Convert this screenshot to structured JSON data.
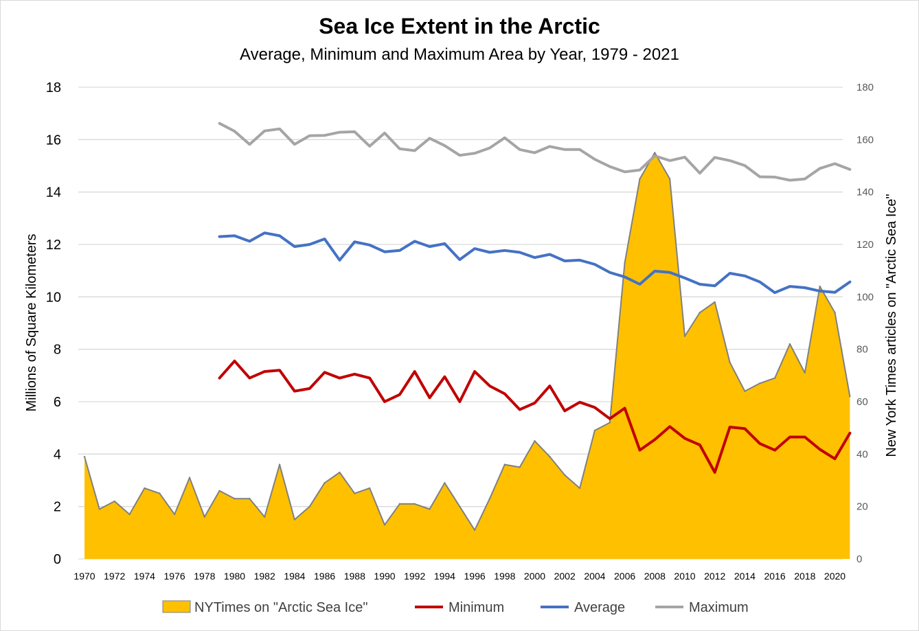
{
  "chart_data": {
    "type": "line",
    "title": "Sea Ice Extent in the Arctic",
    "subtitle": "Average, Minimum and Maximum Area by Year, 1979 - 2021",
    "ylabel": "Millions of Square Kilometers",
    "y2label": "New York Times articles on \"Arctic Sea Ice\"",
    "ylim": [
      0,
      18
    ],
    "y2lim": [
      0,
      180
    ],
    "yticks": [
      "0",
      "2",
      "4",
      "6",
      "8",
      "10",
      "12",
      "14",
      "16",
      "18"
    ],
    "y2ticks": [
      "0",
      "20",
      "40",
      "60",
      "80",
      "100",
      "120",
      "140",
      "160",
      "180"
    ],
    "xticks": [
      "1970",
      "1972",
      "1974",
      "1976",
      "1978",
      "1980",
      "1982",
      "1984",
      "1986",
      "1988",
      "1990",
      "1992",
      "1994",
      "1996",
      "1998",
      "2000",
      "2002",
      "2004",
      "2006",
      "2008",
      "2010",
      "2012",
      "2014",
      "2016",
      "2018",
      "2020"
    ],
    "grid": true,
    "legend_position": "bottom",
    "colors": {
      "articles_fill": "#ffc000",
      "articles_stroke": "#808080",
      "minimum": "#c00000",
      "average": "#4472c4",
      "maximum": "#a5a5a5",
      "grid": "#d9d9d9"
    },
    "area_series": {
      "name": "NYTimes on \"Arctic Sea Ice\"",
      "axis": "secondary",
      "x": [
        1970,
        1971,
        1972,
        1973,
        1974,
        1975,
        1976,
        1977,
        1978,
        1979,
        1980,
        1981,
        1982,
        1983,
        1984,
        1985,
        1986,
        1987,
        1988,
        1989,
        1990,
        1991,
        1992,
        1993,
        1994,
        1995,
        1996,
        1997,
        1998,
        1999,
        2000,
        2001,
        2002,
        2003,
        2004,
        2005,
        2006,
        2007,
        2008,
        2009,
        2010,
        2011,
        2012,
        2013,
        2014,
        2015,
        2016,
        2017,
        2018,
        2019,
        2020,
        2021
      ],
      "values": [
        39,
        19,
        22,
        17,
        27,
        25,
        17,
        31,
        16,
        26,
        23,
        23,
        16,
        36,
        15,
        20,
        29,
        33,
        25,
        27,
        13,
        21,
        21,
        19,
        29,
        20,
        11,
        23,
        36,
        35,
        45,
        39,
        32,
        27,
        49,
        52,
        113,
        145,
        155,
        145,
        85,
        94,
        98,
        75,
        64,
        67,
        69,
        82,
        71,
        104,
        94,
        62
      ]
    },
    "series": [
      {
        "name": "Minimum",
        "x": [
          1979,
          1980,
          1981,
          1982,
          1983,
          1984,
          1985,
          1986,
          1987,
          1988,
          1989,
          1990,
          1991,
          1992,
          1993,
          1994,
          1995,
          1996,
          1997,
          1998,
          1999,
          2000,
          2001,
          2002,
          2003,
          2004,
          2005,
          2006,
          2007,
          2008,
          2009,
          2010,
          2011,
          2012,
          2013,
          2014,
          2015,
          2016,
          2017,
          2018,
          2019,
          2020,
          2021
        ],
        "values": [
          6.9,
          7.55,
          6.9,
          7.15,
          7.2,
          6.4,
          6.5,
          7.12,
          6.9,
          7.05,
          6.9,
          6.0,
          6.27,
          7.15,
          6.15,
          6.95,
          6.0,
          7.15,
          6.6,
          6.3,
          5.7,
          5.95,
          6.6,
          5.65,
          5.98,
          5.78,
          5.35,
          5.75,
          4.15,
          4.55,
          5.05,
          4.6,
          4.35,
          3.3,
          5.03,
          4.97,
          4.4,
          4.15,
          4.65,
          4.65,
          4.18,
          3.82,
          4.8
        ]
      },
      {
        "name": "Average",
        "x": [
          1979,
          1980,
          1981,
          1982,
          1983,
          1984,
          1985,
          1986,
          1987,
          1988,
          1989,
          1990,
          1991,
          1992,
          1993,
          1994,
          1995,
          1996,
          1997,
          1998,
          1999,
          2000,
          2001,
          2002,
          2003,
          2004,
          2005,
          2006,
          2007,
          2008,
          2009,
          2010,
          2011,
          2012,
          2013,
          2014,
          2015,
          2016,
          2017,
          2018,
          2019,
          2020,
          2021
        ],
        "values": [
          12.3,
          12.33,
          12.12,
          12.44,
          12.33,
          11.92,
          12.0,
          12.21,
          11.4,
          12.1,
          11.98,
          11.72,
          11.77,
          12.12,
          11.92,
          12.03,
          11.42,
          11.84,
          11.7,
          11.77,
          11.7,
          11.5,
          11.62,
          11.37,
          11.4,
          11.24,
          10.93,
          10.76,
          10.48,
          10.98,
          10.93,
          10.72,
          10.48,
          10.42,
          10.9,
          10.8,
          10.57,
          10.16,
          10.4,
          10.35,
          10.22,
          10.17,
          10.57
        ]
      },
      {
        "name": "Maximum",
        "x": [
          1979,
          1980,
          1981,
          1982,
          1983,
          1984,
          1985,
          1986,
          1987,
          1988,
          1989,
          1990,
          1991,
          1992,
          1993,
          1994,
          1995,
          1996,
          1997,
          1998,
          1999,
          2000,
          2001,
          2002,
          2003,
          2004,
          2005,
          2006,
          2007,
          2008,
          2009,
          2010,
          2011,
          2012,
          2013,
          2014,
          2015,
          2016,
          2017,
          2018,
          2019,
          2020,
          2021
        ],
        "values": [
          16.62,
          16.32,
          15.82,
          16.33,
          16.41,
          15.82,
          16.15,
          16.16,
          16.28,
          16.3,
          15.75,
          16.25,
          15.65,
          15.58,
          16.05,
          15.77,
          15.4,
          15.48,
          15.68,
          16.07,
          15.62,
          15.5,
          15.74,
          15.62,
          15.62,
          15.25,
          14.97,
          14.77,
          14.84,
          15.38,
          15.2,
          15.33,
          14.72,
          15.32,
          15.2,
          15.01,
          14.58,
          14.57,
          14.45,
          14.5,
          14.9,
          15.08,
          14.86
        ]
      }
    ]
  }
}
